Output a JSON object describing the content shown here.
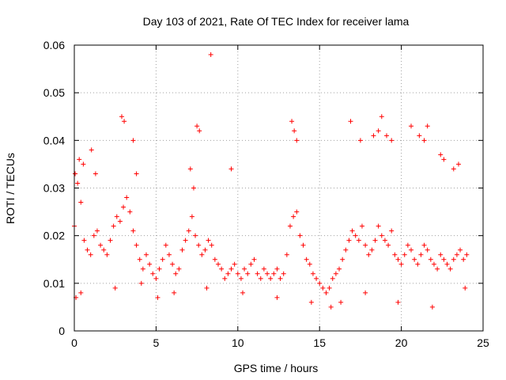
{
  "chart_data": {
    "type": "scatter",
    "title": "Day 103 of 2021, Rate Of TEC Index for receiver lama",
    "xlabel": "GPS time / hours",
    "ylabel": "ROTI / TECUs",
    "xlim": [
      0,
      25
    ],
    "ylim": [
      0,
      0.06
    ],
    "x_ticks": [
      0,
      5,
      10,
      15,
      20,
      25
    ],
    "x_tick_labels": [
      "0",
      "5",
      "10",
      "15",
      "20",
      "25"
    ],
    "y_ticks": [
      0,
      0.01,
      0.02,
      0.03,
      0.04,
      0.05,
      0.06
    ],
    "y_tick_labels": [
      "0",
      "0.01",
      "0.02",
      "0.03",
      "0.04",
      "0.05",
      "0.06"
    ],
    "grid": true,
    "marker": "+",
    "series": [
      {
        "name": "ROTI",
        "color": "#ff0000",
        "x": [
          0.0,
          0.2,
          0.4,
          0.6,
          0.8,
          1.0,
          1.2,
          1.4,
          1.6,
          1.8,
          2.0,
          2.2,
          2.4,
          2.6,
          2.8,
          3.0,
          3.2,
          3.4,
          3.6,
          3.8,
          4.0,
          4.2,
          4.4,
          4.6,
          4.8,
          5.0,
          5.2,
          5.4,
          5.6,
          5.8,
          6.0,
          6.2,
          6.4,
          6.6,
          6.8,
          7.0,
          7.2,
          7.4,
          7.6,
          7.8,
          8.0,
          8.2,
          8.4,
          8.6,
          8.8,
          9.0,
          9.2,
          9.4,
          9.6,
          9.8,
          10.0,
          10.2,
          10.4,
          10.6,
          10.8,
          11.0,
          11.2,
          11.4,
          11.6,
          11.8,
          12.0,
          12.2,
          12.4,
          12.6,
          12.8,
          13.0,
          13.2,
          13.4,
          13.6,
          13.8,
          14.0,
          14.2,
          14.4,
          14.6,
          14.8,
          15.0,
          15.2,
          15.4,
          15.6,
          15.8,
          16.0,
          16.2,
          16.4,
          16.6,
          16.8,
          17.0,
          17.2,
          17.4,
          17.6,
          17.8,
          18.0,
          18.2,
          18.4,
          18.6,
          18.8,
          19.0,
          19.2,
          19.4,
          19.6,
          19.8,
          20.0,
          20.2,
          20.4,
          20.6,
          20.8,
          21.0,
          21.2,
          21.4,
          21.6,
          21.8,
          22.0,
          22.2,
          22.4,
          22.6,
          22.8,
          23.0,
          23.2,
          23.4,
          23.6,
          23.8,
          24.0,
          0.05,
          0.3,
          0.55,
          1.05,
          1.3,
          2.9,
          3.05,
          3.6,
          3.8,
          7.1,
          7.3,
          7.5,
          7.65,
          8.35,
          9.6,
          13.3,
          13.45,
          13.6,
          16.9,
          17.5,
          18.3,
          18.6,
          18.8,
          19.1,
          19.4,
          20.6,
          21.1,
          21.4,
          21.6,
          22.4,
          22.6,
          23.2,
          23.5,
          0.1,
          0.4,
          2.5,
          4.1,
          5.1,
          6.1,
          8.1,
          10.3,
          12.4,
          14.5,
          15.7,
          16.3,
          17.8,
          19.8,
          21.9,
          23.9
        ],
        "y": [
          0.022,
          0.031,
          0.027,
          0.019,
          0.017,
          0.016,
          0.02,
          0.021,
          0.018,
          0.017,
          0.016,
          0.019,
          0.022,
          0.024,
          0.023,
          0.026,
          0.028,
          0.025,
          0.021,
          0.018,
          0.015,
          0.013,
          0.016,
          0.014,
          0.012,
          0.011,
          0.013,
          0.015,
          0.018,
          0.016,
          0.014,
          0.012,
          0.013,
          0.017,
          0.019,
          0.021,
          0.024,
          0.02,
          0.018,
          0.016,
          0.017,
          0.019,
          0.018,
          0.015,
          0.014,
          0.013,
          0.011,
          0.012,
          0.013,
          0.014,
          0.012,
          0.011,
          0.013,
          0.012,
          0.014,
          0.015,
          0.012,
          0.011,
          0.013,
          0.012,
          0.011,
          0.012,
          0.013,
          0.011,
          0.012,
          0.016,
          0.022,
          0.024,
          0.025,
          0.02,
          0.018,
          0.015,
          0.014,
          0.012,
          0.011,
          0.01,
          0.009,
          0.008,
          0.009,
          0.011,
          0.012,
          0.013,
          0.015,
          0.017,
          0.019,
          0.021,
          0.02,
          0.019,
          0.022,
          0.018,
          0.016,
          0.017,
          0.019,
          0.022,
          0.02,
          0.019,
          0.018,
          0.021,
          0.016,
          0.015,
          0.014,
          0.016,
          0.018,
          0.017,
          0.015,
          0.014,
          0.016,
          0.018,
          0.017,
          0.015,
          0.014,
          0.013,
          0.016,
          0.015,
          0.014,
          0.013,
          0.015,
          0.016,
          0.017,
          0.015,
          0.016,
          0.033,
          0.036,
          0.035,
          0.038,
          0.033,
          0.045,
          0.044,
          0.04,
          0.033,
          0.034,
          0.03,
          0.043,
          0.042,
          0.058,
          0.034,
          0.044,
          0.042,
          0.04,
          0.044,
          0.04,
          0.041,
          0.042,
          0.045,
          0.041,
          0.04,
          0.043,
          0.041,
          0.04,
          0.043,
          0.037,
          0.036,
          0.034,
          0.035,
          0.007,
          0.008,
          0.009,
          0.01,
          0.007,
          0.008,
          0.009,
          0.008,
          0.007,
          0.006,
          0.005,
          0.006,
          0.008,
          0.006,
          0.005,
          0.009
        ]
      }
    ]
  }
}
